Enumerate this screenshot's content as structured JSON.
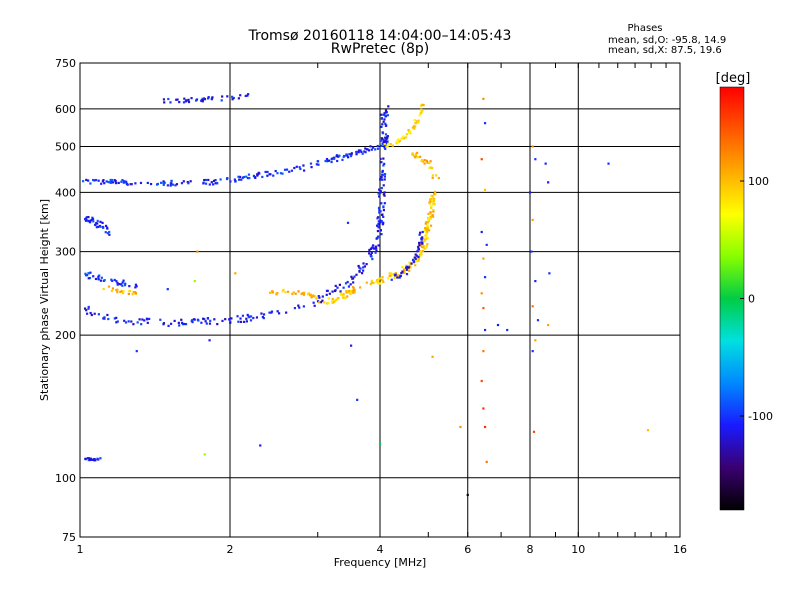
{
  "header": {
    "title_line1": "Tromsø 20160118 14:04:00–14:05:43",
    "title_line2": "RwPretec (8p)"
  },
  "stats": {
    "heading": "Phases",
    "o_line": "mean, sd,O: -95.8, 14.9",
    "x_line": "mean, sd,X:  87.5, 19.6"
  },
  "colorbar": {
    "unit": "[deg]",
    "tick_labels": [
      "100",
      "0",
      "-100"
    ],
    "tick_values": [
      100,
      0,
      -100
    ],
    "range": [
      -180,
      180
    ],
    "colors": [
      "#000000",
      "#3a0070",
      "#1a1aff",
      "#0088ff",
      "#00e0e0",
      "#00cc44",
      "#88ff00",
      "#ffff00",
      "#ffaa00",
      "#ff5500",
      "#ff0000"
    ]
  },
  "chart_data": {
    "type": "scatter",
    "title": "Tromsø 20160118 14:04:00–14:05:43",
    "subtitle": "RwPretec (8p)",
    "xlabel": "Frequency [MHz]",
    "ylabel": "Stationary phase Virtual Height [km]",
    "xscale": "log",
    "yscale": "log",
    "xlim": [
      1,
      16
    ],
    "ylim": [
      75,
      750
    ],
    "x_ticks": [
      1,
      2,
      4,
      6,
      8,
      10,
      16
    ],
    "x_tick_labels": [
      "1",
      "2",
      "4",
      "6",
      "8",
      "10",
      "16"
    ],
    "y_ticks": [
      75,
      100,
      200,
      300,
      400,
      500,
      600,
      750
    ],
    "y_tick_labels": [
      "75",
      "100",
      "200",
      "300",
      "400",
      "500",
      "600",
      "750"
    ],
    "grid": true,
    "legend": "colorbar-right",
    "series": [
      {
        "kind": "trace",
        "points": [
          [
            1.02,
            228
          ],
          [
            1.1,
            220
          ],
          [
            1.2,
            215
          ],
          [
            1.35,
            213
          ],
          [
            1.5,
            212
          ],
          [
            1.7,
            213
          ],
          [
            1.9,
            214
          ],
          [
            2.1,
            216
          ],
          [
            2.3,
            219
          ],
          [
            2.6,
            225
          ],
          [
            2.9,
            232
          ],
          [
            3.1,
            240
          ],
          [
            3.3,
            250
          ],
          [
            3.5,
            262
          ],
          [
            3.7,
            278
          ],
          [
            3.85,
            295
          ],
          [
            3.95,
            315
          ],
          [
            4.0,
            340
          ],
          [
            4.03,
            380
          ],
          [
            4.05,
            430
          ],
          [
            4.07,
            500
          ],
          [
            4.08,
            560
          ],
          [
            4.1,
            610
          ]
        ],
        "phase": -110,
        "spread": 0.035,
        "count": 260
      },
      {
        "kind": "trace",
        "points": [
          [
            3.0,
            233
          ],
          [
            3.3,
            240
          ],
          [
            3.6,
            250
          ],
          [
            3.9,
            258
          ],
          [
            4.2,
            266
          ],
          [
            4.5,
            275
          ],
          [
            4.7,
            285
          ],
          [
            4.85,
            300
          ],
          [
            4.95,
            320
          ],
          [
            5.02,
            345
          ],
          [
            5.07,
            370
          ],
          [
            5.1,
            390
          ],
          [
            5.12,
            400
          ]
        ],
        "phase": 95,
        "spread": 0.03,
        "count": 200
      },
      {
        "kind": "trace",
        "points": [
          [
            4.2,
            262
          ],
          [
            4.5,
            272
          ],
          [
            4.7,
            290
          ],
          [
            4.8,
            310
          ],
          [
            4.85,
            330
          ]
        ],
        "phase": -115,
        "spread": 0.025,
        "count": 40
      },
      {
        "kind": "trace",
        "points": [
          [
            1.02,
            420
          ],
          [
            1.2,
            420
          ],
          [
            1.4,
            418
          ],
          [
            1.6,
            418
          ],
          [
            1.8,
            420
          ],
          [
            2.0,
            425
          ],
          [
            2.2,
            432
          ],
          [
            2.5,
            440
          ],
          [
            2.8,
            450
          ],
          [
            3.0,
            460
          ],
          [
            3.3,
            473
          ],
          [
            3.6,
            485
          ],
          [
            3.9,
            497
          ],
          [
            4.1,
            510
          ],
          [
            4.2,
            530
          ]
        ],
        "phase": -105,
        "spread": 0.025,
        "count": 190
      },
      {
        "kind": "trace",
        "points": [
          [
            4.1,
            500
          ],
          [
            4.3,
            510
          ],
          [
            4.5,
            525
          ],
          [
            4.7,
            555
          ],
          [
            4.8,
            585
          ],
          [
            4.9,
            615
          ]
        ],
        "phase": 90,
        "spread": 0.02,
        "count": 45
      },
      {
        "kind": "trace",
        "points": [
          [
            1.45,
            625
          ],
          [
            1.6,
            625
          ],
          [
            1.8,
            630
          ],
          [
            2.0,
            632
          ],
          [
            2.2,
            640
          ]
        ],
        "phase": -110,
        "spread": 0.02,
        "count": 40
      },
      {
        "kind": "trace",
        "points": [
          [
            1.02,
            355
          ],
          [
            1.08,
            345
          ],
          [
            1.12,
            335
          ],
          [
            1.15,
            328
          ]
        ],
        "phase": -105,
        "spread": 0.03,
        "count": 35
      },
      {
        "kind": "trace",
        "points": [
          [
            1.02,
            268
          ],
          [
            1.1,
            263
          ],
          [
            1.2,
            258
          ],
          [
            1.3,
            253
          ]
        ],
        "phase": -100,
        "spread": 0.03,
        "count": 35
      },
      {
        "kind": "trace",
        "points": [
          [
            1.12,
            252
          ],
          [
            1.2,
            248
          ],
          [
            1.3,
            244
          ]
        ],
        "phase": 100,
        "spread": 0.02,
        "count": 20
      },
      {
        "kind": "trace",
        "points": [
          [
            1.02,
            110
          ],
          [
            1.06,
            109
          ],
          [
            1.1,
            110
          ]
        ],
        "phase": -110,
        "spread": 0.01,
        "count": 18
      },
      {
        "kind": "trace",
        "points": [
          [
            2.4,
            245
          ],
          [
            2.6,
            247
          ],
          [
            2.8,
            245
          ],
          [
            3.0,
            240
          ]
        ],
        "phase": 100,
        "spread": 0.02,
        "count": 30
      },
      {
        "kind": "trace",
        "points": [
          [
            4.6,
            490
          ],
          [
            5.0,
            460
          ],
          [
            5.2,
            430
          ]
        ],
        "phase": 100,
        "spread": 0.03,
        "count": 25
      },
      {
        "kind": "scatter",
        "points": [
          [
            6.45,
            630
          ],
          [
            6.5,
            560
          ],
          [
            6.4,
            470
          ],
          [
            6.5,
            405
          ],
          [
            6.4,
            330
          ],
          [
            6.55,
            310
          ],
          [
            6.45,
            290
          ],
          [
            6.5,
            265
          ],
          [
            6.4,
            245
          ],
          [
            6.45,
            228
          ],
          [
            6.5,
            205
          ],
          [
            6.45,
            185
          ],
          [
            6.4,
            160
          ],
          [
            6.45,
            140
          ],
          [
            6.5,
            128
          ],
          [
            6.55,
            108
          ],
          [
            6.9,
            210
          ],
          [
            7.2,
            205
          ],
          [
            8.1,
            500
          ],
          [
            8.2,
            470
          ],
          [
            8.0,
            400
          ],
          [
            8.1,
            350
          ],
          [
            8.05,
            300
          ],
          [
            8.2,
            260
          ],
          [
            8.1,
            230
          ],
          [
            8.3,
            215
          ],
          [
            8.2,
            195
          ],
          [
            8.1,
            185
          ],
          [
            8.15,
            125
          ],
          [
            8.6,
            460
          ],
          [
            8.7,
            420
          ],
          [
            8.75,
            270
          ],
          [
            8.7,
            210
          ],
          [
            11.5,
            460
          ],
          [
            13.8,
            126
          ],
          [
            1.82,
            195
          ],
          [
            1.78,
            112
          ],
          [
            2.3,
            117
          ],
          [
            1.3,
            185
          ],
          [
            1.72,
            300
          ],
          [
            1.7,
            260
          ],
          [
            1.5,
            250
          ],
          [
            2.05,
            270
          ],
          [
            3.5,
            190
          ],
          [
            3.6,
            146
          ],
          [
            4.0,
            118
          ],
          [
            6.0,
            92
          ],
          [
            5.8,
            128
          ],
          [
            5.1,
            180
          ],
          [
            3.45,
            345
          ]
        ],
        "phases": [
          120,
          -100,
          150,
          100,
          -110,
          -100,
          110,
          -100,
          120,
          140,
          -100,
          130,
          150,
          160,
          160,
          130,
          -110,
          -100,
          120,
          -100,
          -110,
          110,
          -100,
          -105,
          130,
          -100,
          110,
          -100,
          150,
          -105,
          -110,
          -100,
          110,
          -100,
          100,
          -110,
          40,
          -110,
          -100,
          120,
          40,
          -100,
          110,
          -110,
          -100,
          -5,
          -180,
          120,
          110,
          -100
        ]
      }
    ]
  }
}
